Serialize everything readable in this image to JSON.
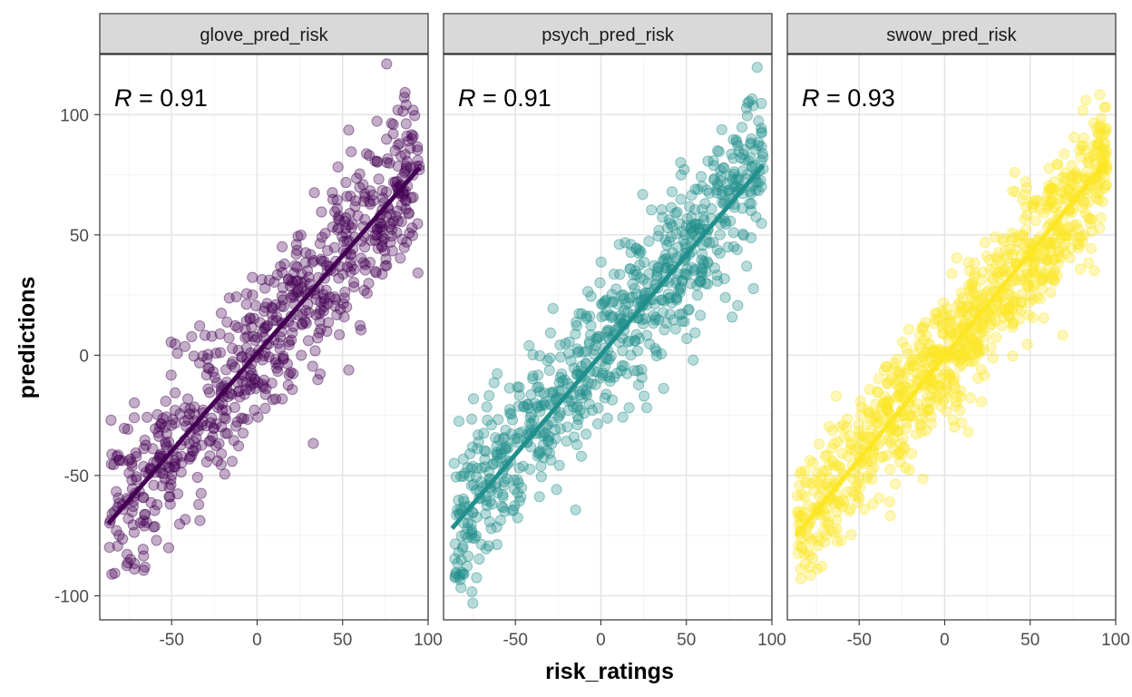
{
  "chart_data": {
    "type": "scatter",
    "faceted": true,
    "xlabel": "risk_ratings",
    "ylabel": "predictions",
    "xlim": [
      -92,
      100
    ],
    "ylim": [
      -110,
      125
    ],
    "x_ticks": [
      "-50",
      "0",
      "50",
      "100"
    ],
    "x_tick_values": [
      -50,
      0,
      50,
      100
    ],
    "y_ticks": [
      "100",
      "50",
      "0",
      "-50",
      "-100"
    ],
    "y_tick_values": [
      100,
      50,
      0,
      -50,
      -100
    ],
    "grid": true,
    "r_prefix": "R",
    "panels": [
      {
        "name": "glove_pred_risk",
        "r_value": "= 0.91",
        "color": "#440154",
        "trend_line": {
          "x": [
            -87,
            95
          ],
          "y": [
            -70,
            78
          ]
        },
        "n_points": 700,
        "x_range": [
          -87,
          95
        ],
        "noise_sd": 17,
        "seed": 11
      },
      {
        "name": "psych_pred_risk",
        "r_value": "= 0.91",
        "color": "#21908c",
        "trend_line": {
          "x": [
            -87,
            95
          ],
          "y": [
            -72,
            79
          ]
        },
        "n_points": 800,
        "x_range": [
          -87,
          95
        ],
        "noise_sd": 16,
        "seed": 23
      },
      {
        "name": "swow_pred_risk",
        "r_value": "= 0.93",
        "color": "#fde725",
        "trend_line": {
          "x": [
            -87,
            95
          ],
          "y": [
            -75,
            81
          ]
        },
        "n_points": 1000,
        "x_range": [
          -87,
          95
        ],
        "noise_sd": 13.5,
        "seed": 37
      }
    ]
  }
}
